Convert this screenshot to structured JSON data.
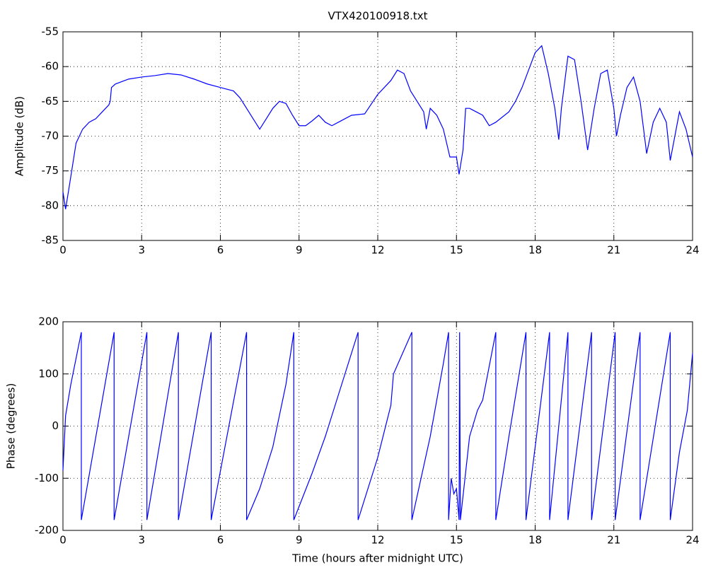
{
  "chart_data": [
    {
      "type": "line",
      "title": "VTX420100918.txt",
      "ylabel": "Amplitude (dB)",
      "color": "#0000ff",
      "grid": true,
      "xlim": [
        0,
        24
      ],
      "xticks": [
        0,
        3,
        6,
        9,
        12,
        15,
        18,
        21,
        24
      ],
      "ylim": [
        -85,
        -55
      ],
      "yticks": [
        -85,
        -80,
        -75,
        -70,
        -65,
        -60,
        -55
      ],
      "x": [
        0,
        0.1,
        0.25,
        0.5,
        0.75,
        1,
        1.25,
        1.5,
        1.75,
        1.8,
        1.85,
        2,
        2.5,
        3,
        3.5,
        4,
        4.5,
        5,
        5.5,
        6,
        6.5,
        6.75,
        7,
        7.25,
        7.5,
        7.75,
        8,
        8.25,
        8.5,
        8.75,
        9,
        9.25,
        9.5,
        9.75,
        10,
        10.25,
        10.5,
        11,
        11.5,
        12,
        12.5,
        12.75,
        13,
        13.25,
        13.5,
        13.75,
        13.85,
        14,
        14.25,
        14.5,
        14.75,
        15,
        15.1,
        15.25,
        15.35,
        15.5,
        15.75,
        16,
        16.25,
        16.5,
        17,
        17.25,
        17.5,
        17.75,
        18,
        18.25,
        18.5,
        18.75,
        18.9,
        19,
        19.25,
        19.5,
        19.75,
        20,
        20.25,
        20.5,
        20.75,
        21,
        21.1,
        21.25,
        21.5,
        21.75,
        22,
        22.25,
        22.5,
        22.75,
        23,
        23.15,
        23.5,
        23.75,
        24
      ],
      "values": [
        -78,
        -80.5,
        -77,
        -71,
        -69,
        -68,
        -67.5,
        -66.5,
        -65.5,
        -65,
        -63,
        -62.5,
        -61.8,
        -61.5,
        -61.3,
        -61,
        -61.2,
        -61.8,
        -62.5,
        -63,
        -63.5,
        -64.5,
        -66,
        -67.5,
        -69,
        -67.5,
        -66,
        -65,
        -65.3,
        -67,
        -68.5,
        -68.5,
        -67.8,
        -67,
        -68,
        -68.5,
        -68,
        -67,
        -66.8,
        -64,
        -62,
        -60.5,
        -61,
        -63.5,
        -65,
        -66.5,
        -69,
        -66,
        -67,
        -69,
        -73,
        -73,
        -75.5,
        -72,
        -66,
        -66,
        -66.5,
        -67,
        -68.5,
        -68,
        -66.5,
        -65,
        -63,
        -60.5,
        -58,
        -57,
        -61,
        -66,
        -70.5,
        -66,
        -58.5,
        -59,
        -65,
        -72,
        -66,
        -61,
        -60.5,
        -66,
        -70,
        -67,
        -63,
        -61.5,
        -65,
        -72.5,
        -68,
        -66,
        -68,
        -73.5,
        -66.5,
        -69,
        -73
      ]
    },
    {
      "type": "line",
      "xlabel": "Time (hours after midnight UTC)",
      "ylabel": "Phase (degrees)",
      "color": "#0000ff",
      "grid": true,
      "xlim": [
        0,
        24
      ],
      "xticks": [
        0,
        3,
        6,
        9,
        12,
        15,
        18,
        21,
        24
      ],
      "ylim": [
        -200,
        200
      ],
      "yticks": [
        -200,
        -100,
        0,
        100,
        200
      ],
      "x": [
        0,
        0.1,
        0.3,
        0.5,
        0.7,
        0.7,
        1.95,
        1.95,
        3.2,
        3.2,
        4.4,
        4.4,
        5.65,
        5.65,
        7.0,
        7.0,
        7.5,
        8.0,
        8.5,
        8.8,
        8.8,
        9.5,
        10,
        10.5,
        11.25,
        11.25,
        12,
        12.5,
        12.6,
        13.3,
        13.3,
        14,
        14.5,
        14.7,
        14.7,
        14.8,
        14.9,
        15.0,
        15.1,
        15.12,
        15.15,
        15.5,
        15.8,
        16,
        16.5,
        16.5,
        17,
        17.65,
        17.65,
        18.55,
        18.55,
        19.25,
        19.25,
        20.15,
        20.15,
        21.05,
        21.05,
        22,
        22,
        23.15,
        23.15,
        23.5,
        23.8,
        24
      ],
      "values": [
        -85,
        20,
        80,
        130,
        180,
        -180,
        180,
        -180,
        180,
        -180,
        180,
        -180,
        180,
        -180,
        180,
        -180,
        -120,
        -40,
        80,
        180,
        -180,
        -90,
        -20,
        60,
        180,
        -180,
        -60,
        40,
        100,
        180,
        -180,
        -20,
        120,
        180,
        -180,
        -100,
        -130,
        -120,
        -180,
        180,
        -180,
        -20,
        30,
        50,
        180,
        -180,
        -20,
        180,
        -180,
        180,
        -180,
        180,
        -180,
        180,
        -180,
        180,
        -180,
        180,
        -180,
        180,
        -180,
        -50,
        30,
        140
      ]
    }
  ]
}
